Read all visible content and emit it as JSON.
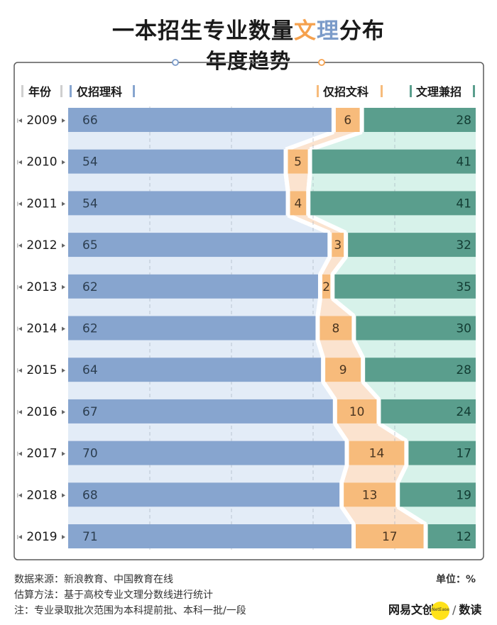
{
  "title_parts": [
    {
      "text": "一本招生专业数量",
      "hl": ""
    },
    {
      "text": "文",
      "hl": "o"
    },
    {
      "text": "理",
      "hl": "b"
    },
    {
      "text": "分布",
      "hl": ""
    }
  ],
  "subtitle": "年度趋势",
  "headers": {
    "year": "年份",
    "science": "仅招理科",
    "arts": "仅招文科",
    "both": "文理兼招"
  },
  "colors": {
    "science": "#87a5cf",
    "science_bg": "#e3ecf7",
    "arts": "#f7bb7b",
    "arts_bg": "#fbe3cf",
    "both": "#5a9e8d",
    "both_bg": "#d7f2ea",
    "frame": "#5a5a5a"
  },
  "chart_data": {
    "type": "bar",
    "stacked": true,
    "orientation": "horizontal",
    "title": "一本招生专业数量文理分布",
    "subtitle": "年度趋势",
    "unit": "%",
    "categories": [
      "2009",
      "2010",
      "2011",
      "2012",
      "2013",
      "2014",
      "2015",
      "2016",
      "2017",
      "2018",
      "2019"
    ],
    "series": [
      {
        "name": "仅招理科",
        "values": [
          66,
          54,
          54,
          65,
          62,
          62,
          64,
          67,
          70,
          68,
          71
        ]
      },
      {
        "name": "仅招文科",
        "values": [
          6,
          5,
          4,
          3,
          2,
          8,
          9,
          10,
          14,
          13,
          17
        ]
      },
      {
        "name": "文理兼招",
        "values": [
          28,
          41,
          41,
          32,
          35,
          30,
          28,
          24,
          17,
          19,
          12
        ]
      }
    ]
  },
  "footer": {
    "source": "数据来源：新浪教育、中国教育在线",
    "method": "估算方法：基于高校专业文理分数线进行统计",
    "note": "注：专业录取批次范围为本科提前批、本科一批/一段",
    "unit_label": "单位：%",
    "brand_main": "网易文创",
    "brand_small": "NetEase",
    "brand_sep": "/",
    "brand_sub": "数读"
  }
}
